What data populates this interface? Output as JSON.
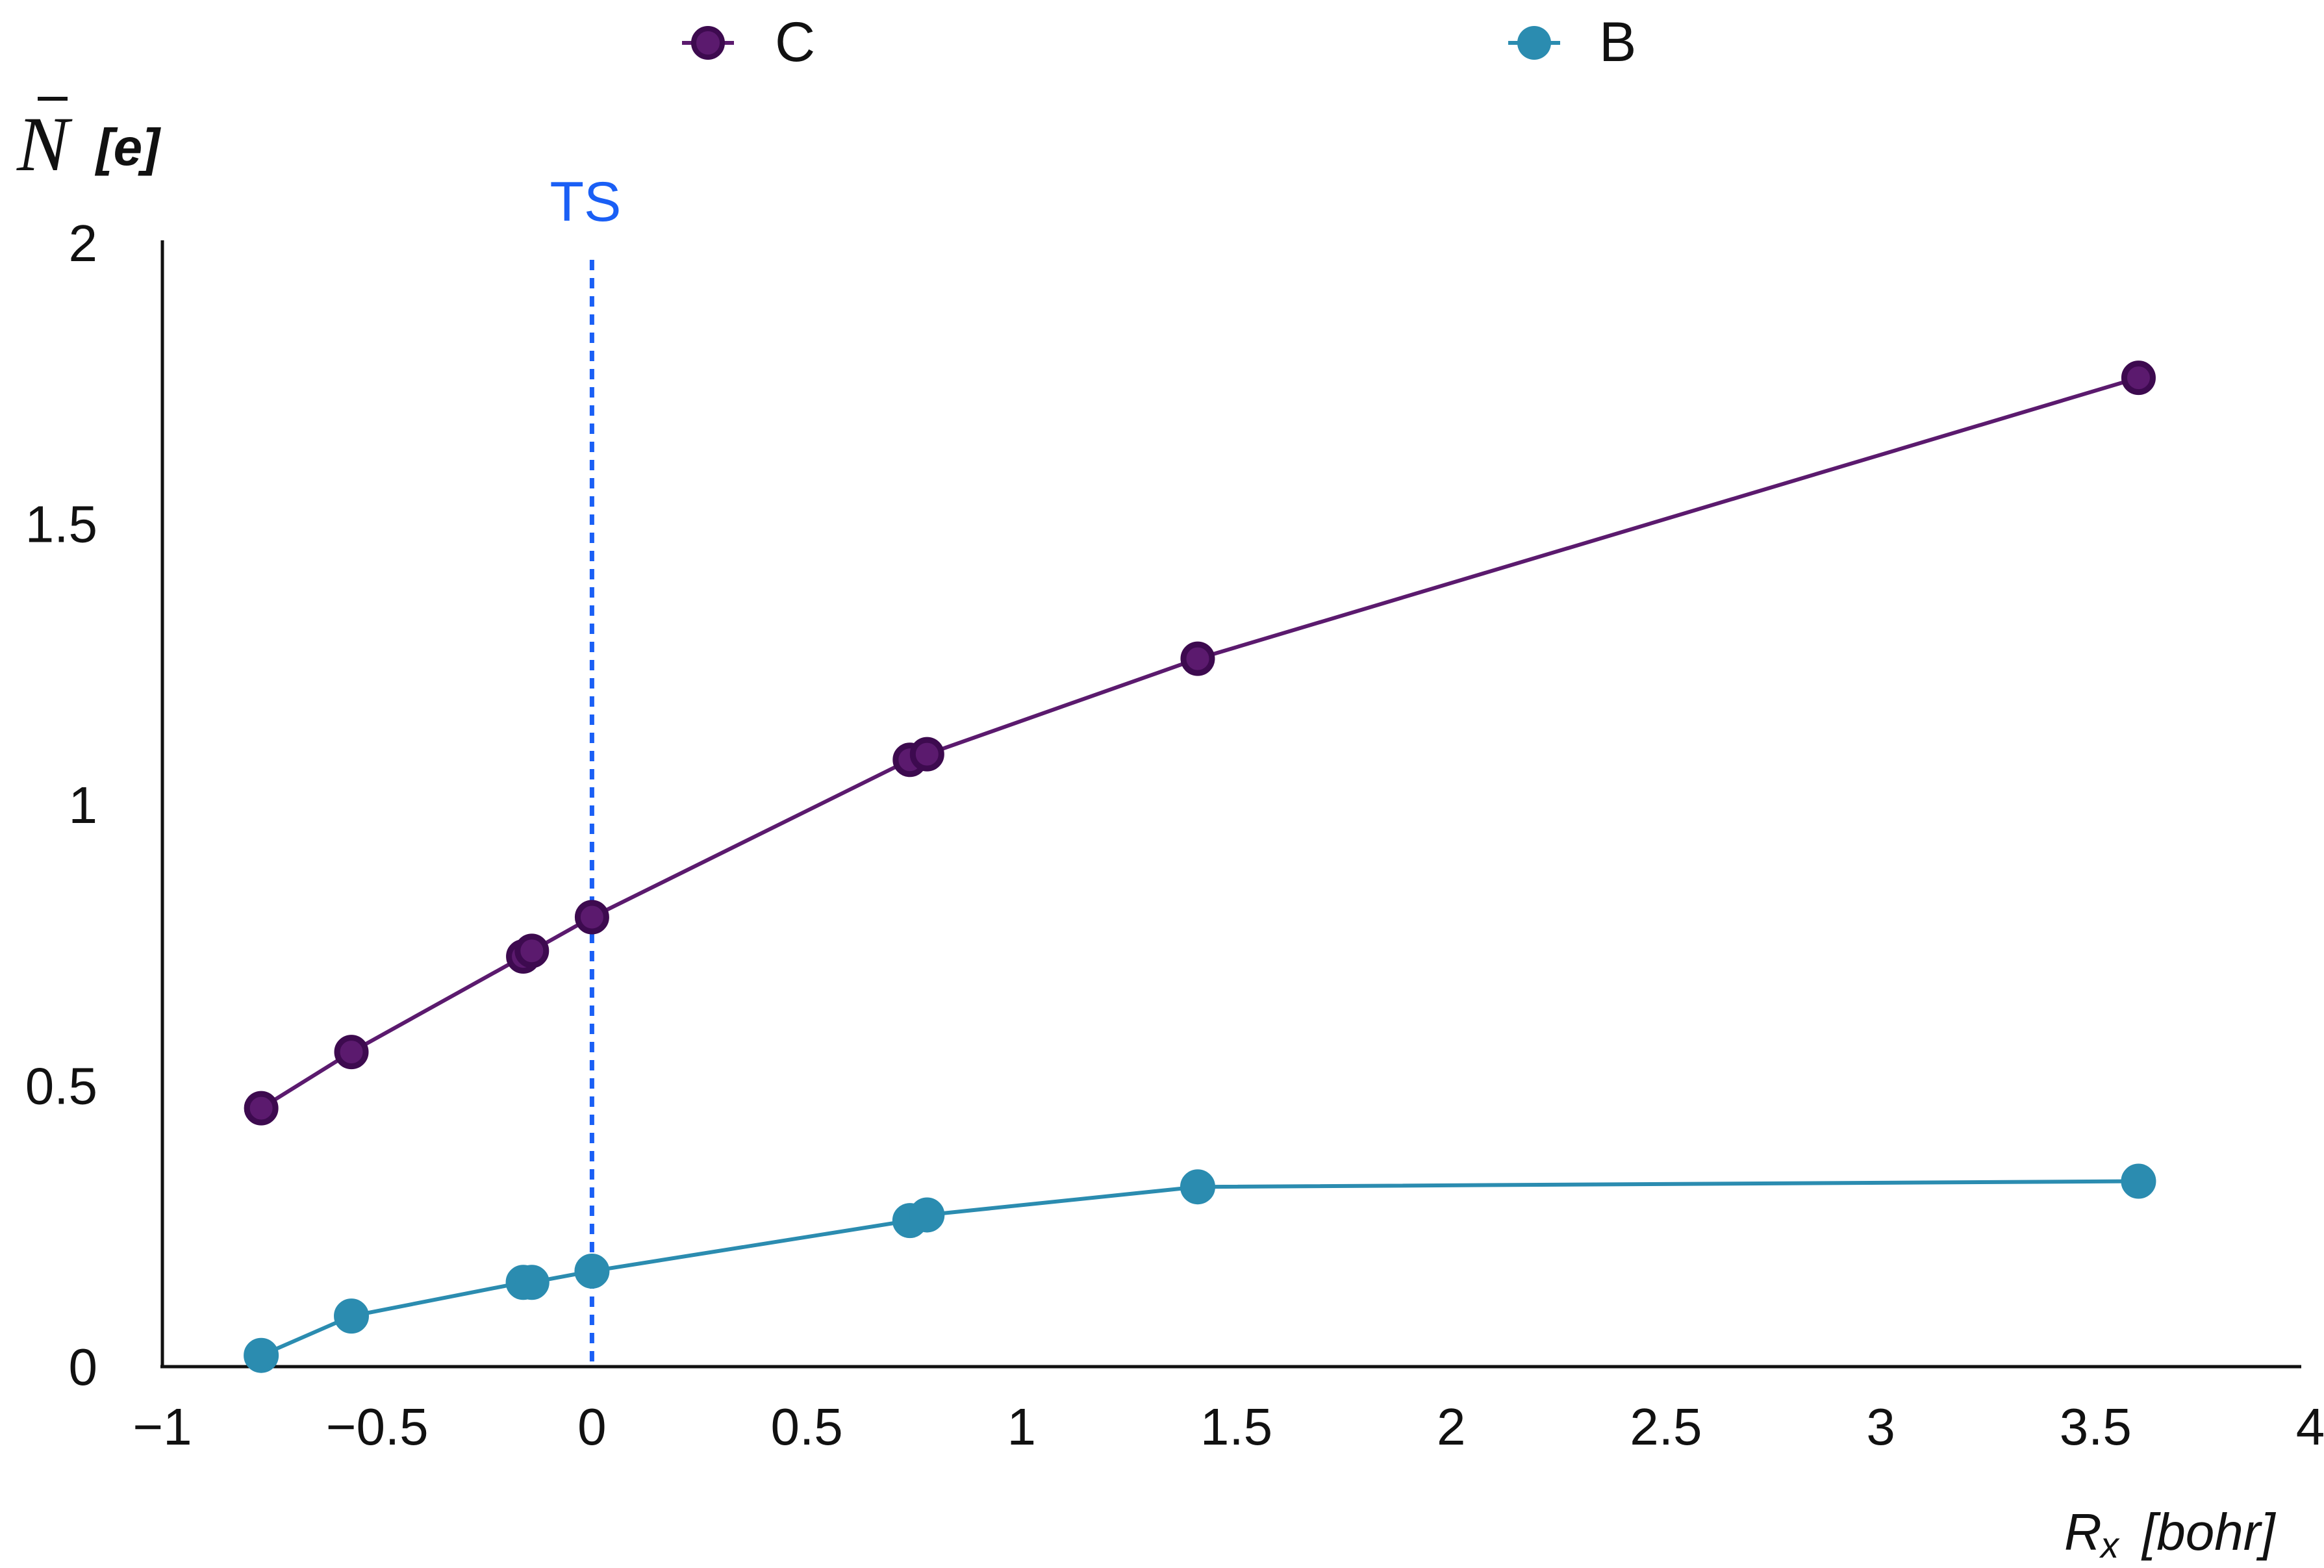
{
  "chart_data": {
    "type": "line",
    "xlim": [
      -1,
      4
    ],
    "ylim": [
      0,
      2
    ],
    "x_ticks": [
      "−1",
      "−0.5",
      "0",
      "0.5",
      "1",
      "1.5",
      "2",
      "2.5",
      "3",
      "3.5",
      "4"
    ],
    "y_ticks": [
      "0",
      "0.5",
      "1",
      "1.5",
      "2"
    ],
    "ylabel": {
      "symbol": "N",
      "unit": "[e]"
    },
    "xlabel": {
      "symbol": "R",
      "subscript": "x",
      "unit": "[bohr]"
    },
    "grid": false,
    "legend": {
      "position": "top"
    },
    "series": [
      {
        "name": "C",
        "color": "#5b1a6e",
        "edge_color": "#3d0a4f",
        "x": [
          -0.77,
          -0.56,
          -0.16,
          -0.14,
          0.0,
          0.74,
          0.78,
          1.41,
          3.6
        ],
        "y": [
          0.46,
          0.56,
          0.73,
          0.74,
          0.8,
          1.08,
          1.09,
          1.26,
          1.76
        ]
      },
      {
        "name": "B",
        "color": "#2b8cb0",
        "edge_color": "#2b8cb0",
        "x": [
          -0.77,
          -0.56,
          -0.16,
          -0.14,
          0.0,
          0.74,
          0.78,
          1.41,
          3.6
        ],
        "y": [
          0.02,
          0.09,
          0.15,
          0.15,
          0.17,
          0.26,
          0.27,
          0.32,
          0.33
        ]
      }
    ],
    "annotations": [
      {
        "type": "vline",
        "x": 0,
        "label": "TS",
        "color": "#1a5ff5"
      }
    ]
  }
}
